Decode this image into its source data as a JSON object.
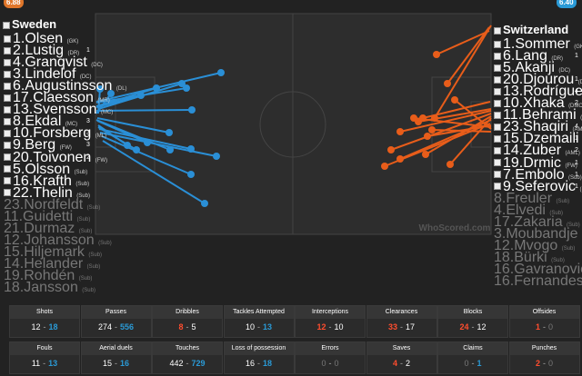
{
  "home": {
    "name": "Sweden",
    "rating": "6.88",
    "players": [
      {
        "name": "1.Olsen",
        "pos": "(GK)"
      },
      {
        "name": "2.Lustig",
        "pos": "(DR)",
        "count": 1
      },
      {
        "name": "4.Granqvist",
        "pos": "(DC)"
      },
      {
        "name": "3.Lindelof",
        "pos": "(DC)"
      },
      {
        "name": "6.Augustinsson",
        "pos": "(DL)"
      },
      {
        "name": "17.Claesson",
        "pos": "(MR)"
      },
      {
        "name": "13.Svensson",
        "pos": "(MC)"
      },
      {
        "name": "8.Ekdal",
        "pos": "(MC)",
        "count": 3
      },
      {
        "name": "10.Forsberg",
        "pos": "(ML)",
        "count": 3
      },
      {
        "name": "9.Berg",
        "pos": "(FW)",
        "count": 3
      },
      {
        "name": "20.Toivonen",
        "pos": "(FW)",
        "count": 2
      },
      {
        "name": "5.Olsson",
        "pos": "(Sub)"
      },
      {
        "name": "16.Krafth",
        "pos": "(Sub)"
      },
      {
        "name": "22.Thelin",
        "pos": "(Sub)"
      }
    ],
    "unused_subs": [
      {
        "name": "23.Nordfeldt",
        "pos": "(Sub)"
      },
      {
        "name": "11.Guidetti",
        "pos": "(Sub)"
      },
      {
        "name": "21.Durmaz",
        "pos": "(Sub)"
      },
      {
        "name": "12.Johansson",
        "pos": "(Sub)"
      },
      {
        "name": "15.Hiljemark",
        "pos": "(Sub)"
      },
      {
        "name": "14.Helander",
        "pos": "(Sub)"
      },
      {
        "name": "19.Rohdén",
        "pos": "(Sub)"
      },
      {
        "name": "18.Jansson",
        "pos": "(Sub)"
      }
    ]
  },
  "away": {
    "name": "Switzerland",
    "rating": "6.40",
    "players": [
      {
        "name": "1.Sommer",
        "pos": "(GK)"
      },
      {
        "name": "6.Lang",
        "pos": "(DR)",
        "count": 1
      },
      {
        "name": "5.Akanji",
        "pos": "(DC)"
      },
      {
        "name": "20.Djourou",
        "pos": "(DC)",
        "count": 1
      },
      {
        "name": "13.Rodríguez",
        "pos": "(DL)",
        "count": 4
      },
      {
        "name": "10.Xhaka",
        "pos": "(DMC)",
        "count": 2
      },
      {
        "name": "11.Behrami",
        "pos": "(DMC)"
      },
      {
        "name": "23.Shaqiri",
        "pos": "(AMR)",
        "count": 4
      },
      {
        "name": "15.Dzemaili",
        "pos": "(AMC)",
        "count": 1
      },
      {
        "name": "14.Zuber",
        "pos": "(AML)",
        "count": 2
      },
      {
        "name": "19.Drmic",
        "pos": "(FW)",
        "count": 1
      },
      {
        "name": "7.Embolo",
        "pos": "(Sub)",
        "count": 1
      },
      {
        "name": "9.Seferovic",
        "pos": "(Sub)",
        "count": 1
      }
    ],
    "unused_subs": [
      {
        "name": "8.Freuler",
        "pos": "(Sub)"
      },
      {
        "name": "4.Elvedi",
        "pos": "(Sub)"
      },
      {
        "name": "17.Zakaria",
        "pos": "(Sub)"
      },
      {
        "name": "3.Moubandje",
        "pos": "(Sub)"
      },
      {
        "name": "12.Mvogo",
        "pos": "(Sub)"
      },
      {
        "name": "18.Bürki",
        "pos": "(Sub)"
      },
      {
        "name": "16.Gavranovic",
        "pos": "(Sub)"
      },
      {
        "name": "16.Fernandes",
        "pos": "(Sub)"
      }
    ]
  },
  "watermark": "WhoScored.com",
  "stats": [
    {
      "label": "Shots",
      "home": 12,
      "away": 18
    },
    {
      "label": "Passes",
      "home": 274,
      "away": 556
    },
    {
      "label": "Dribbles",
      "home": 8,
      "away": 5
    },
    {
      "label": "Tackles Attempted",
      "home": 10,
      "away": 13
    },
    {
      "label": "Interceptions",
      "home": 12,
      "away": 10
    },
    {
      "label": "Clearances",
      "home": 33,
      "away": 17
    },
    {
      "label": "Blocks",
      "home": 24,
      "away": 12
    },
    {
      "label": "Offsides",
      "home": 1,
      "away": 0
    },
    {
      "label": "Fouls",
      "home": 11,
      "away": 13
    },
    {
      "label": "Aerial duels",
      "home": 15,
      "away": 16
    },
    {
      "label": "Touches",
      "home": 442,
      "away": 729
    },
    {
      "label": "Loss of possession",
      "home": 16,
      "away": 18
    },
    {
      "label": "Errors",
      "home": 0,
      "away": 0
    },
    {
      "label": "Saves",
      "home": 4,
      "away": 2
    },
    {
      "label": "Claims",
      "home": 0,
      "away": 1
    },
    {
      "label": "Punches",
      "home": 2,
      "away": 0
    }
  ],
  "separator": "-"
}
